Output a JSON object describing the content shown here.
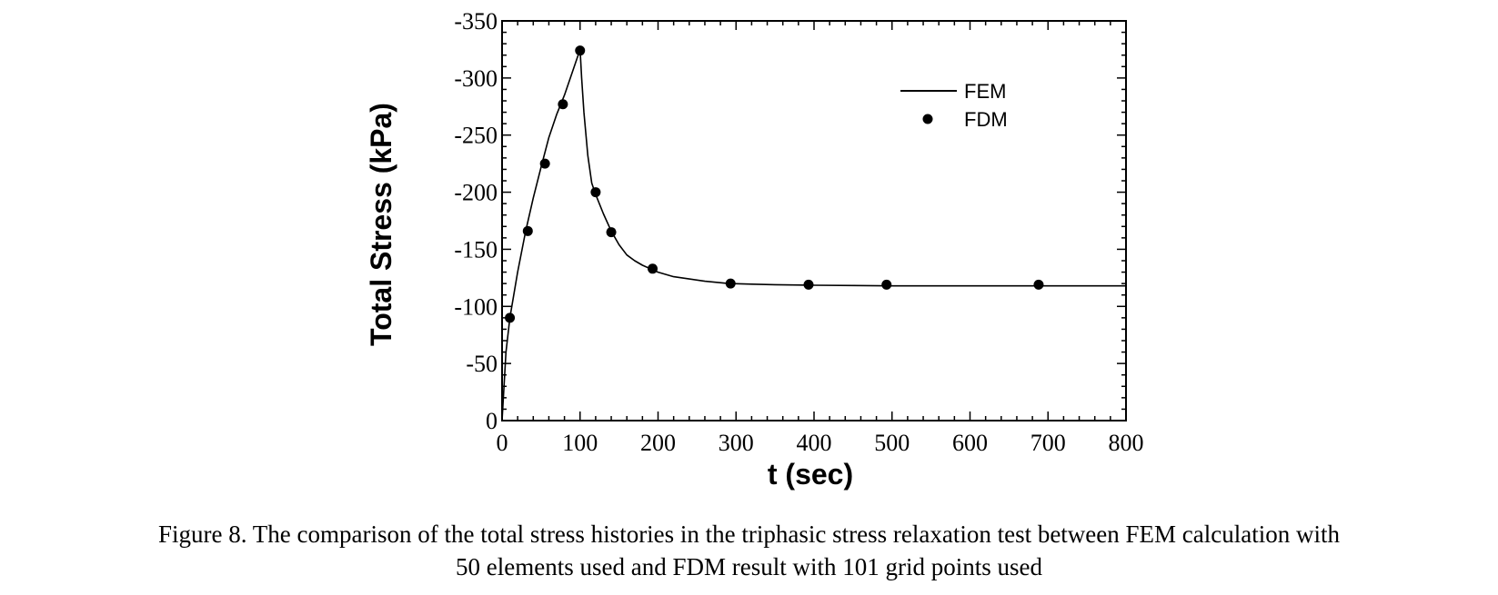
{
  "chart_data": {
    "type": "line",
    "xlabel": "t (sec)",
    "ylabel": "Total Stress (kPa)",
    "xlim": [
      0,
      800
    ],
    "ylim": [
      0,
      -350
    ],
    "y_axis_inverted": true,
    "grid": false,
    "legend_position": "top-right",
    "x_ticks": [
      "0",
      "100",
      "200",
      "300",
      "400",
      "500",
      "600",
      "700",
      "800"
    ],
    "y_ticks": [
      "0",
      "-50",
      "-100",
      "-150",
      "-200",
      "-250",
      "-300",
      "-350"
    ],
    "series": [
      {
        "name": "FEM",
        "style": "line",
        "x": [
          0,
          5,
          10,
          20,
          30,
          40,
          50,
          60,
          70,
          80,
          90,
          100,
          102,
          105,
          110,
          115,
          120,
          130,
          140,
          150,
          160,
          170,
          180,
          190,
          200,
          220,
          240,
          260,
          290,
          320,
          350,
          400,
          450,
          500,
          600,
          700,
          800
        ],
        "y": [
          0,
          -60,
          -90,
          -130,
          -165,
          -195,
          -222,
          -248,
          -268,
          -285,
          -305,
          -325,
          -300,
          -270,
          -232,
          -208,
          -198,
          -181,
          -166,
          -154,
          -145,
          -140,
          -136,
          -133,
          -130,
          -126,
          -124,
          -122,
          -120,
          -119.5,
          -119,
          -118.5,
          -118.3,
          -118,
          -118,
          -118,
          -118
        ]
      },
      {
        "name": "FDM",
        "style": "markers",
        "x": [
          10,
          33,
          55,
          78,
          100,
          120,
          140,
          193,
          293,
          393,
          493,
          688
        ],
        "y": [
          -90,
          -166,
          -225,
          -277,
          -324,
          -200,
          -165,
          -133,
          -120,
          -119,
          -119,
          -119
        ]
      }
    ]
  },
  "caption": {
    "line1": "Figure 8.  The comparison of the total stress histories in the triphasic stress relaxation test between FEM calculation with",
    "line2": "50 elements used and FDM result with 101 grid points used"
  }
}
